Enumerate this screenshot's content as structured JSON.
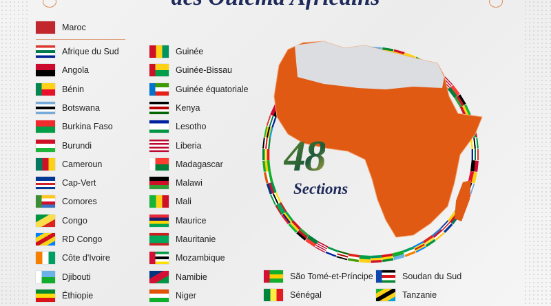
{
  "header": {
    "title": "des Oulema Africains"
  },
  "featured": {
    "label": "Maroc",
    "colors": [
      "#c1272d"
    ]
  },
  "countries": [
    {
      "label": "Afrique du Sud",
      "colors": [
        "#de3831",
        "#ffffff",
        "#007a4d",
        "#ffffff",
        "#002395"
      ]
    },
    {
      "label": "Angola",
      "colors": [
        "#cc092f",
        "#000000"
      ]
    },
    {
      "label": "Bénin",
      "colors": [
        "#fcd116",
        "#e8112d"
      ],
      "hoist": "#008751"
    },
    {
      "label": "Botswana",
      "colors": [
        "#75aadb",
        "#ffffff",
        "#000000",
        "#ffffff",
        "#75aadb"
      ]
    },
    {
      "label": "Burkina Faso",
      "colors": [
        "#ef2b2d",
        "#009e49"
      ]
    },
    {
      "label": "Burundi",
      "colors": [
        "#ce1126",
        "#ffffff",
        "#1eb53a"
      ]
    },
    {
      "label": "Cameroun",
      "colors": [
        "#007a5e",
        "#ce1126",
        "#fcd116"
      ],
      "vertical": true
    },
    {
      "label": "Cap-Vert",
      "colors": [
        "#003893",
        "#003893",
        "#ffffff",
        "#cf2027",
        "#ffffff",
        "#003893"
      ]
    },
    {
      "label": "Comores",
      "colors": [
        "#ffc61e",
        "#ffffff",
        "#ce1126",
        "#3a75c4"
      ],
      "hoist": "#3d8e33"
    },
    {
      "label": "Congo",
      "colors": [
        "#009543",
        "#fbde4a",
        "#dc241f"
      ],
      "diag": true
    },
    {
      "label": "RD Congo",
      "colors": [
        "#007fff",
        "#f7d618",
        "#ce1021",
        "#f7d618",
        "#007fff"
      ],
      "diag": true
    },
    {
      "label": "Côte d'Ivoire",
      "colors": [
        "#f77f00",
        "#ffffff",
        "#009e60"
      ],
      "vertical": true
    },
    {
      "label": "Djibouti",
      "colors": [
        "#6ab2e7",
        "#12ad2b"
      ],
      "hoist": "#ffffff"
    },
    {
      "label": "Éthiopie",
      "colors": [
        "#078930",
        "#fcdd09",
        "#da121a"
      ]
    },
    {
      "label": "Guinée",
      "colors": [
        "#ce1126",
        "#fcd116",
        "#009460"
      ],
      "vertical": true
    },
    {
      "label": "Guinée-Bissau",
      "colors": [
        "#fcd116",
        "#009e49"
      ],
      "hoist": "#ce1126"
    },
    {
      "label": "Guinée équatoriale",
      "colors": [
        "#3e9a00",
        "#ffffff",
        "#e32118"
      ],
      "hoist": "#0073ce"
    },
    {
      "label": "Kenya",
      "colors": [
        "#000000",
        "#ffffff",
        "#bb0000",
        "#ffffff",
        "#006600"
      ]
    },
    {
      "label": "Lesotho",
      "colors": [
        "#00209f",
        "#ffffff",
        "#ffffff",
        "#009543"
      ]
    },
    {
      "label": "Liberia",
      "colors": [
        "#bf0a30",
        "#ffffff",
        "#bf0a30",
        "#ffffff",
        "#bf0a30",
        "#ffffff",
        "#bf0a30"
      ]
    },
    {
      "label": "Madagascar",
      "colors": [
        "#fc3d32",
        "#007e3a"
      ],
      "hoist": "#ffffff"
    },
    {
      "label": "Malawi",
      "colors": [
        "#000000",
        "#ce1126",
        "#339e35"
      ]
    },
    {
      "label": "Mali",
      "colors": [
        "#14b53a",
        "#fcd116",
        "#ce1126"
      ],
      "vertical": true
    },
    {
      "label": "Maurice",
      "colors": [
        "#ea2839",
        "#1a206d",
        "#ffd500",
        "#00a551"
      ]
    },
    {
      "label": "Mauritanie",
      "colors": [
        "#d01c1f",
        "#00a95c",
        "#00a95c",
        "#00a95c",
        "#d01c1f"
      ]
    },
    {
      "label": "Mozambique",
      "colors": [
        "#009a44",
        "#ffffff",
        "#000000",
        "#ffffff",
        "#fce100"
      ],
      "hoist": "#d21034"
    },
    {
      "label": "Namibie",
      "colors": [
        "#003580",
        "#d21034",
        "#009543"
      ],
      "diag": true
    },
    {
      "label": "Niger",
      "colors": [
        "#e05206",
        "#ffffff",
        "#0db02b"
      ]
    },
    {
      "label": "São Tomé-et-Príncipe",
      "colors": [
        "#12ad2b",
        "#ffce00",
        "#12ad2b"
      ],
      "hoist": "#d21034"
    },
    {
      "label": "Sénégal",
      "colors": [
        "#00853f",
        "#fdef42",
        "#e31b23"
      ],
      "vertical": true
    },
    {
      "label": "Soudan du Sud",
      "colors": [
        "#000000",
        "#ffffff",
        "#da121a",
        "#ffffff",
        "#078930"
      ],
      "hoist": "#0f47af"
    },
    {
      "label": "Tanzanie",
      "colors": [
        "#1eb53a",
        "#fcd116",
        "#000000",
        "#fcd116",
        "#00a3dd"
      ],
      "diag": true
    }
  ],
  "map": {
    "member_color": "#e05a14",
    "other_color": "#dcdde0"
  },
  "badge": {
    "number": "48",
    "label": "Sections"
  }
}
